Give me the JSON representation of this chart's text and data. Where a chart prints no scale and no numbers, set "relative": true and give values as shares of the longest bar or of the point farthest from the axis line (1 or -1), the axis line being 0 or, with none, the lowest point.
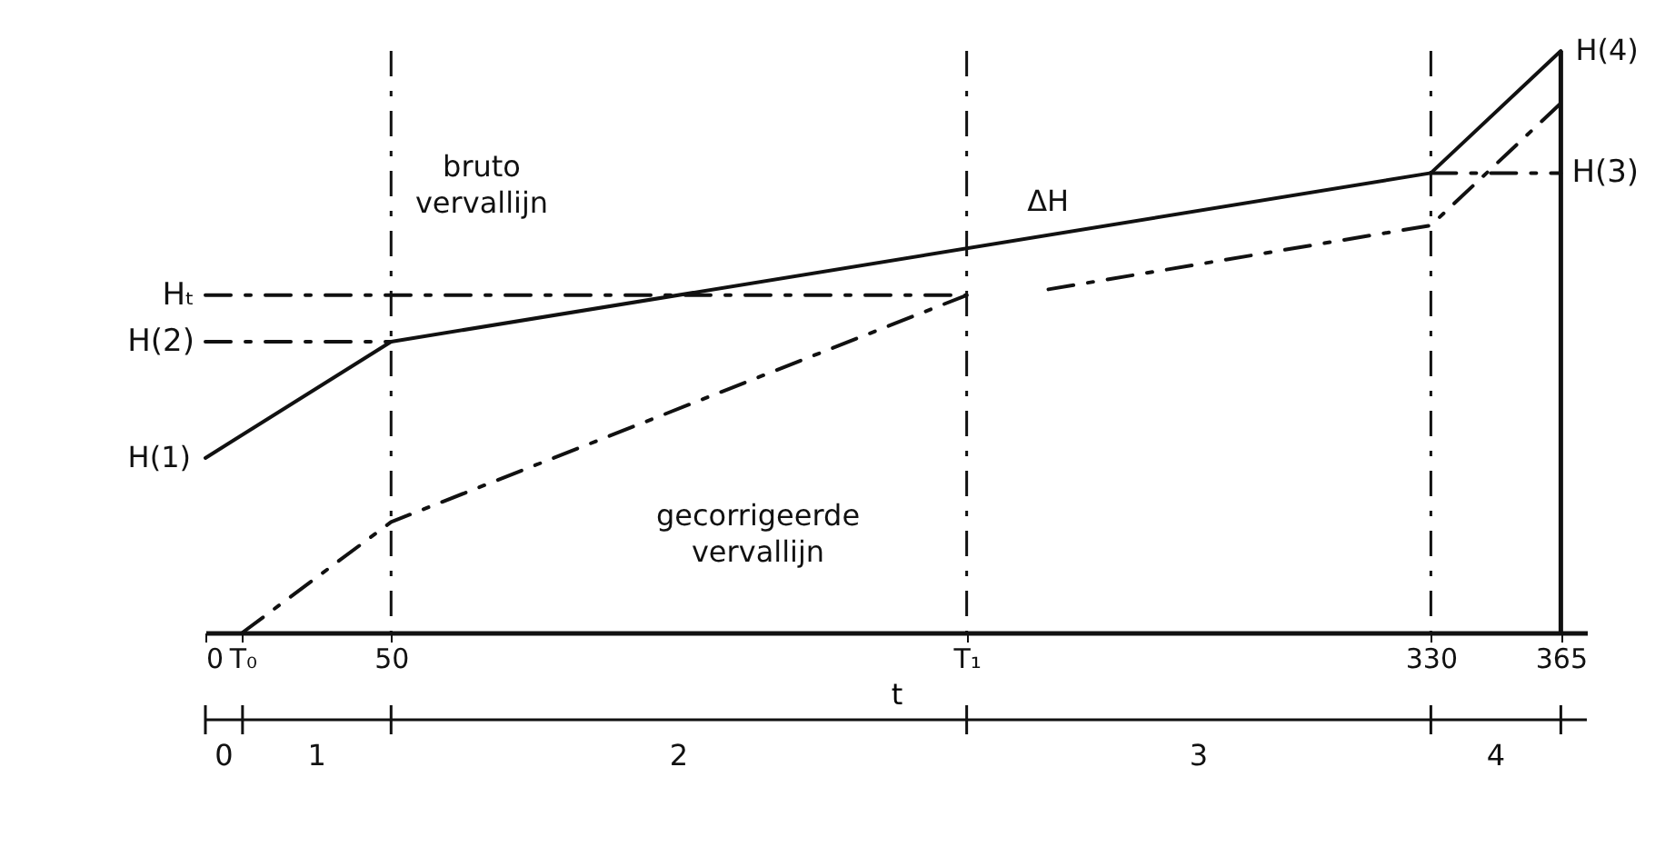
{
  "chart_data": {
    "type": "line",
    "relative": true,
    "xlabel": "t",
    "xlim": [
      0,
      372
    ],
    "xticks": [
      0,
      {
        "value": 10,
        "label": "T₀"
      },
      50,
      {
        "value": 205,
        "label": "T₁"
      },
      330,
      365
    ],
    "series": [
      {
        "color": "#111111",
        "line_style": "solid",
        "x": [
          0,
          50,
          330,
          365
        ],
        "values": [
          0.3,
          0.5,
          0.79,
          1
        ]
      },
      {
        "color": "#111111",
        "line_style": "dashed",
        "x": [
          10,
          50,
          205
        ],
        "values": [
          0,
          0.19,
          0.58
        ]
      },
      {
        "color": "#111111",
        "line_style": "dashed",
        "x": [
          227,
          330,
          365
        ],
        "values": [
          0.59,
          0.7,
          0.91
        ]
      },
      {
        "name": "H(2)",
        "color": "#111111",
        "line_style": "dashed",
        "x": [
          0,
          50
        ],
        "values": [
          0.5,
          0.5
        ]
      },
      {
        "name": "Hₜ",
        "color": "#111111",
        "line_style": "dashed",
        "x": [
          0,
          205
        ],
        "values": [
          0.58,
          0.58
        ]
      },
      {
        "name": "H(3)",
        "color": "#111111",
        "line_style": "dashed",
        "x": [
          330,
          365
        ],
        "values": [
          0.79,
          0.79
        ]
      }
    ],
    "ref_lines": [
      {
        "axis": "x",
        "value": 50,
        "line_style": "dashed"
      },
      {
        "axis": "x",
        "value": 205,
        "line_style": "dashed"
      },
      {
        "axis": "x",
        "value": 330,
        "line_style": "dashed"
      },
      {
        "axis": "x",
        "value": 365,
        "line_style": "solid"
      }
    ],
    "annotations": [
      {
        "text": "H(1)",
        "x": 0,
        "y": 0.3
      },
      {
        "text": "H(4)",
        "x": 365,
        "y": 1
      },
      "ΔH",
      "bruto vervallijn",
      "gecorrigeerde vervallijn",
      "0",
      "1",
      "2",
      "3",
      "4"
    ],
    "grid": false,
    "marker": "none"
  }
}
